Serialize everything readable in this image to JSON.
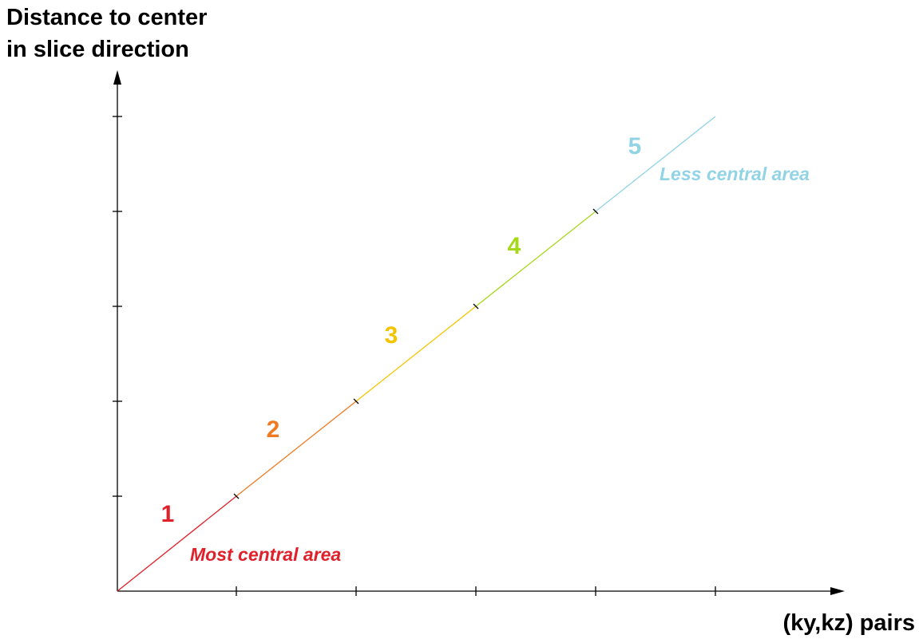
{
  "axes": {
    "y_label": [
      "Distance to center",
      "in slice direction"
    ],
    "x_label": "(ky,kz) pairs"
  },
  "segments": [
    {
      "label": "1"
    },
    {
      "label": "2"
    },
    {
      "label": "3"
    },
    {
      "label": "4"
    },
    {
      "label": "5"
    }
  ],
  "annotations": {
    "most": "Most central area",
    "less": "Less central area"
  }
}
